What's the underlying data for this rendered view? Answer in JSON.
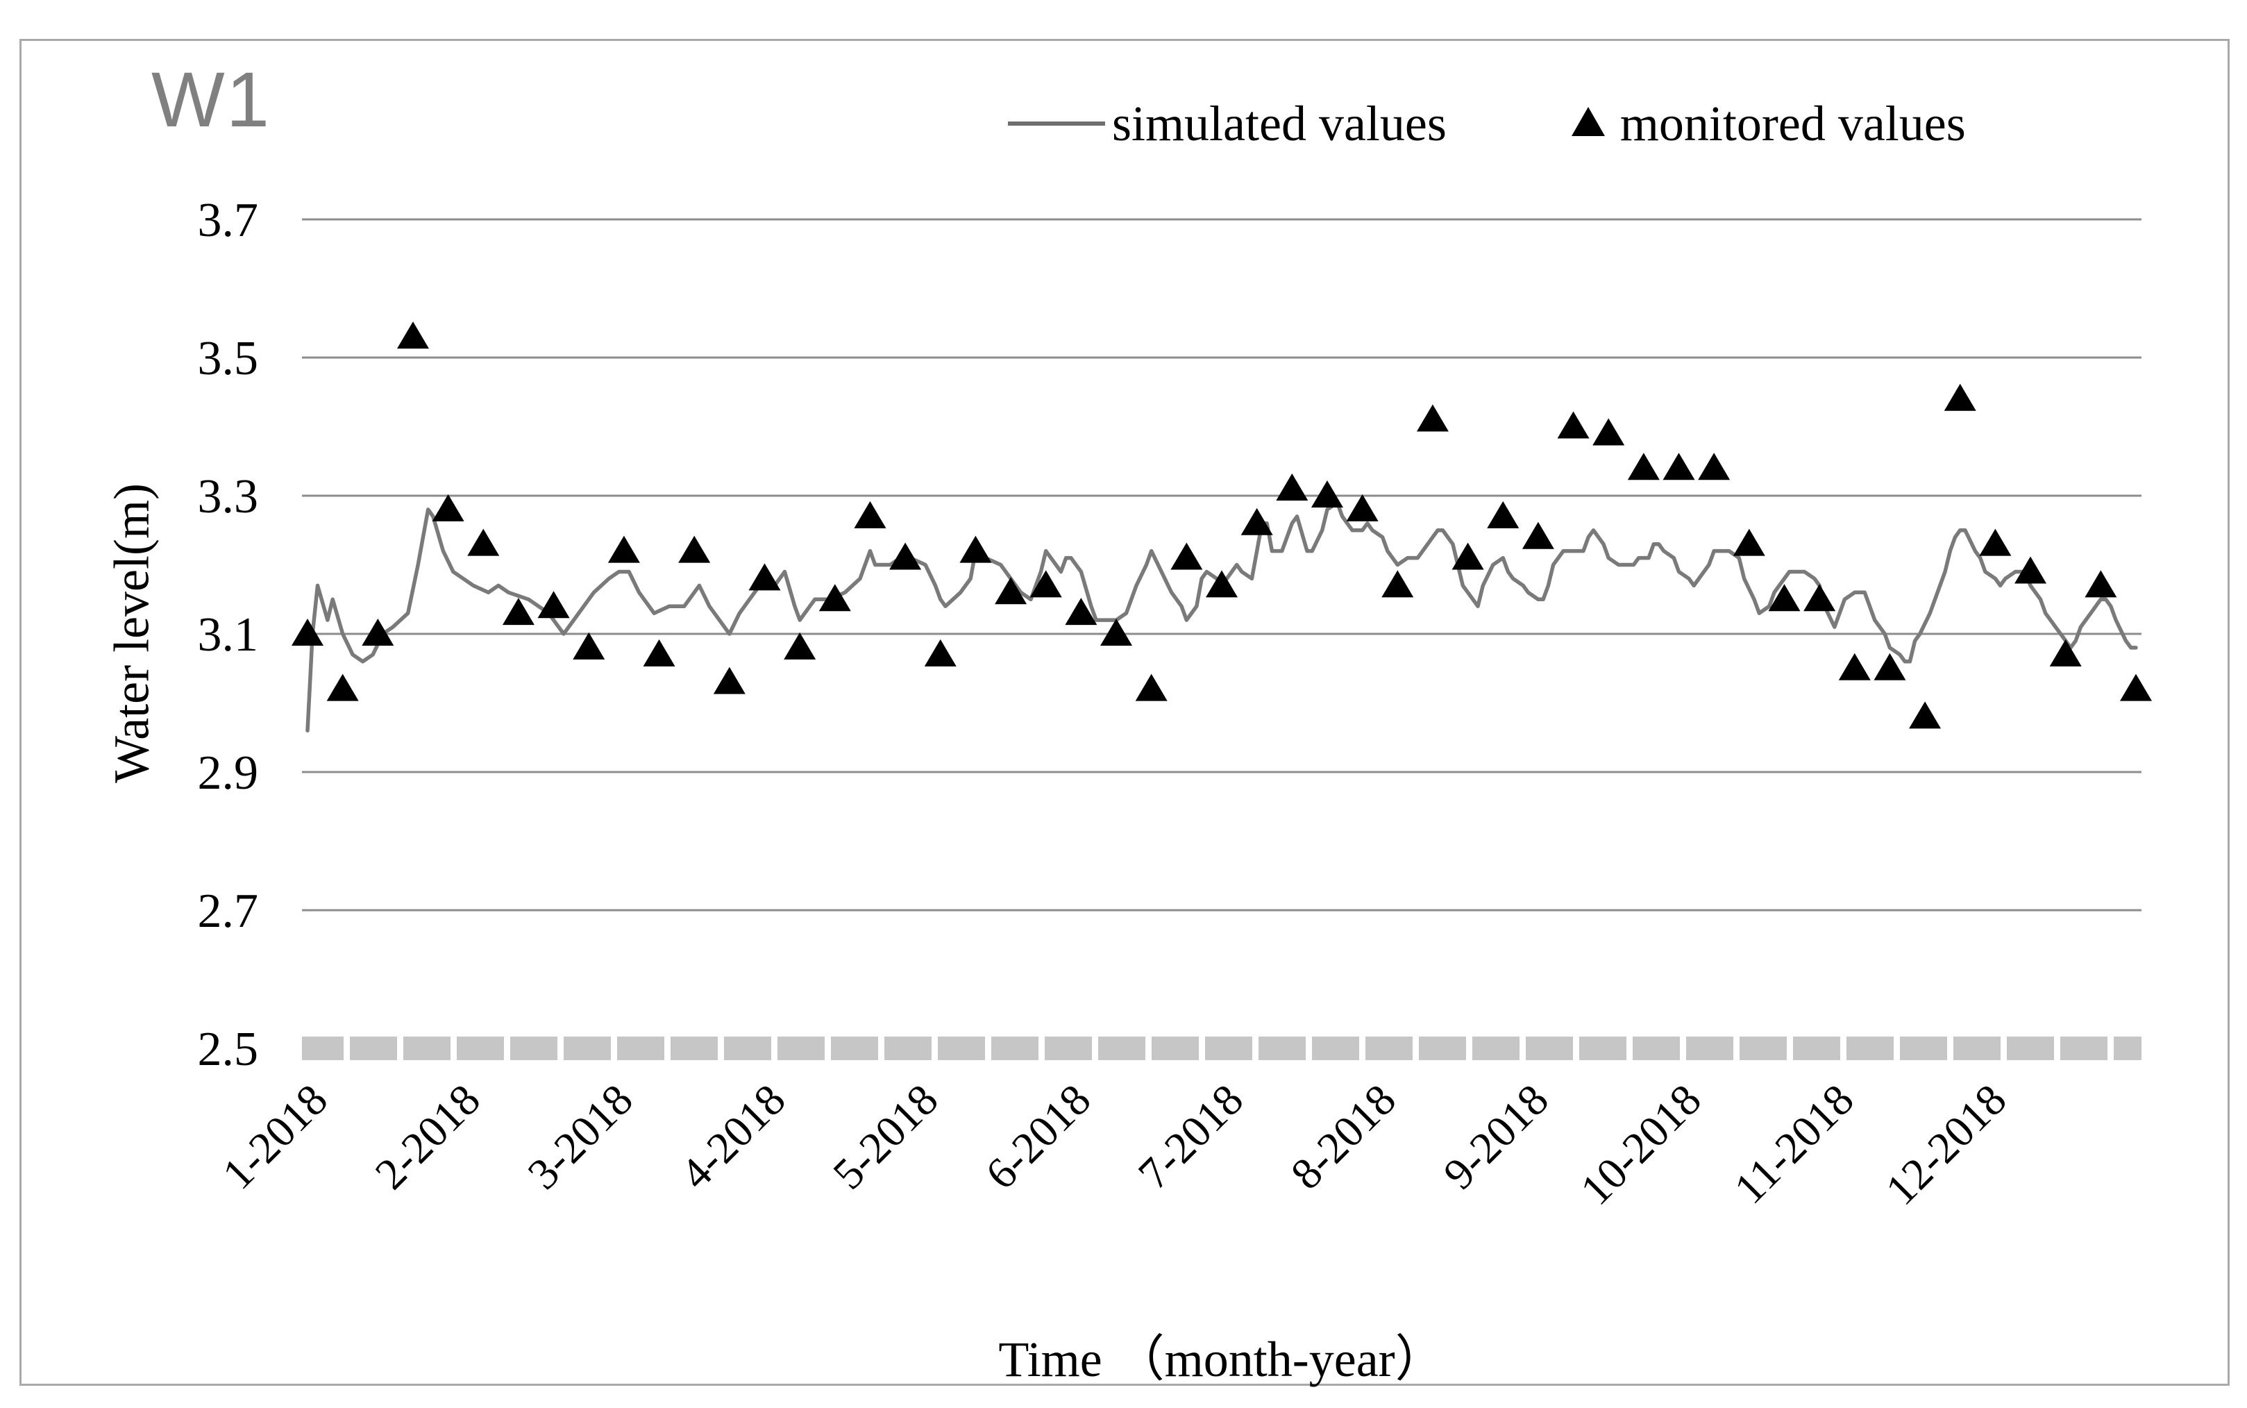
{
  "title": "W1",
  "legend": {
    "simulated_label": "simulated values",
    "monitored_label": "monitored values"
  },
  "axes": {
    "y": {
      "title": "Water level(m)",
      "tick_labels": [
        "3.7",
        "3.5",
        "3.3",
        "3.1",
        "2.9",
        "2.7",
        "2.5"
      ],
      "tick_values": [
        3.7,
        3.5,
        3.3,
        3.1,
        2.9,
        2.7,
        2.5
      ],
      "min": 2.5,
      "max": 3.7
    },
    "x": {
      "title": "Time （month-year）",
      "tick_labels": [
        "1-2018",
        "2-2018",
        "3-2018",
        "4-2018",
        "5-2018",
        "6-2018",
        "7-2018",
        "8-2018",
        "9-2018",
        "10-2018",
        "11-2018",
        "12-2018"
      ]
    }
  },
  "colors": {
    "gridline": "#8c8c8c",
    "axis_band": "#c6c6c6",
    "simulated_line": "#7a7a7a",
    "monitored_marker": "#000000",
    "title_gray": "#808080",
    "frame_border": "#a9a9a9"
  },
  "chart_data": {
    "type": "line",
    "title": "W1",
    "xlabel": "Time （month-year）",
    "ylabel": "Water level(m)",
    "ylim": [
      2.5,
      3.7
    ],
    "x_unit": "day of year 2018 (0-364), ticks at month starts",
    "grid": "horizontal",
    "legend_position": "top-right",
    "series": [
      {
        "name": "simulated values",
        "type": "line",
        "points": [
          [
            0,
            2.96
          ],
          [
            1,
            3.1
          ],
          [
            2,
            3.17
          ],
          [
            4,
            3.12
          ],
          [
            5,
            3.15
          ],
          [
            7,
            3.1
          ],
          [
            9,
            3.07
          ],
          [
            11,
            3.06
          ],
          [
            13,
            3.07
          ],
          [
            15,
            3.1
          ],
          [
            17,
            3.11
          ],
          [
            20,
            3.13
          ],
          [
            22,
            3.2
          ],
          [
            24,
            3.28
          ],
          [
            25,
            3.27
          ],
          [
            27,
            3.22
          ],
          [
            29,
            3.19
          ],
          [
            31,
            3.18
          ],
          [
            33,
            3.17
          ],
          [
            36,
            3.16
          ],
          [
            38,
            3.17
          ],
          [
            40,
            3.16
          ],
          [
            44,
            3.15
          ],
          [
            48,
            3.13
          ],
          [
            51,
            3.1
          ],
          [
            53,
            3.12
          ],
          [
            57,
            3.16
          ],
          [
            60,
            3.18
          ],
          [
            62,
            3.19
          ],
          [
            64,
            3.19
          ],
          [
            66,
            3.16
          ],
          [
            69,
            3.13
          ],
          [
            72,
            3.14
          ],
          [
            75,
            3.14
          ],
          [
            78,
            3.17
          ],
          [
            80,
            3.14
          ],
          [
            82,
            3.12
          ],
          [
            84,
            3.1
          ],
          [
            86,
            3.13
          ],
          [
            88,
            3.15
          ],
          [
            90,
            3.17
          ],
          [
            92,
            3.18
          ],
          [
            93,
            3.17
          ],
          [
            95,
            3.19
          ],
          [
            97,
            3.14
          ],
          [
            98,
            3.12
          ],
          [
            100,
            3.14
          ],
          [
            101,
            3.15
          ],
          [
            104,
            3.15
          ],
          [
            107,
            3.16
          ],
          [
            110,
            3.18
          ],
          [
            111,
            3.2
          ],
          [
            112,
            3.22
          ],
          [
            113,
            3.2
          ],
          [
            116,
            3.2
          ],
          [
            118,
            3.21
          ],
          [
            120,
            3.21
          ],
          [
            123,
            3.2
          ],
          [
            125,
            3.17
          ],
          [
            126,
            3.15
          ],
          [
            127,
            3.14
          ],
          [
            130,
            3.16
          ],
          [
            132,
            3.18
          ],
          [
            133,
            3.22
          ],
          [
            135,
            3.21
          ],
          [
            138,
            3.2
          ],
          [
            141,
            3.17
          ],
          [
            142,
            3.16
          ],
          [
            144,
            3.15
          ],
          [
            146,
            3.19
          ],
          [
            147,
            3.22
          ],
          [
            149,
            3.2
          ],
          [
            150,
            3.19
          ],
          [
            151,
            3.21
          ],
          [
            152,
            3.21
          ],
          [
            154,
            3.19
          ],
          [
            156,
            3.14
          ],
          [
            157,
            3.12
          ],
          [
            159,
            3.12
          ],
          [
            161,
            3.12
          ],
          [
            163,
            3.13
          ],
          [
            165,
            3.17
          ],
          [
            167,
            3.2
          ],
          [
            168,
            3.22
          ],
          [
            170,
            3.19
          ],
          [
            172,
            3.16
          ],
          [
            174,
            3.14
          ],
          [
            175,
            3.12
          ],
          [
            177,
            3.14
          ],
          [
            178,
            3.18
          ],
          [
            179,
            3.19
          ],
          [
            181,
            3.18
          ],
          [
            182,
            3.17
          ],
          [
            184,
            3.19
          ],
          [
            185,
            3.2
          ],
          [
            186,
            3.19
          ],
          [
            188,
            3.18
          ],
          [
            189,
            3.22
          ],
          [
            190,
            3.26
          ],
          [
            191,
            3.26
          ],
          [
            192,
            3.22
          ],
          [
            194,
            3.22
          ],
          [
            196,
            3.26
          ],
          [
            197,
            3.27
          ],
          [
            199,
            3.22
          ],
          [
            200,
            3.22
          ],
          [
            202,
            3.25
          ],
          [
            203,
            3.28
          ],
          [
            205,
            3.29
          ],
          [
            206,
            3.27
          ],
          [
            208,
            3.25
          ],
          [
            210,
            3.25
          ],
          [
            211,
            3.26
          ],
          [
            212,
            3.25
          ],
          [
            214,
            3.24
          ],
          [
            215,
            3.22
          ],
          [
            217,
            3.2
          ],
          [
            219,
            3.21
          ],
          [
            221,
            3.21
          ],
          [
            222,
            3.22
          ],
          [
            224,
            3.24
          ],
          [
            225,
            3.25
          ],
          [
            226,
            3.25
          ],
          [
            228,
            3.23
          ],
          [
            229,
            3.2
          ],
          [
            230,
            3.17
          ],
          [
            232,
            3.15
          ],
          [
            233,
            3.14
          ],
          [
            234,
            3.17
          ],
          [
            236,
            3.2
          ],
          [
            238,
            3.21
          ],
          [
            239,
            3.19
          ],
          [
            240,
            3.18
          ],
          [
            242,
            3.17
          ],
          [
            243,
            3.16
          ],
          [
            245,
            3.15
          ],
          [
            246,
            3.15
          ],
          [
            247,
            3.17
          ],
          [
            248,
            3.2
          ],
          [
            250,
            3.22
          ],
          [
            251,
            3.22
          ],
          [
            253,
            3.22
          ],
          [
            254,
            3.22
          ],
          [
            255,
            3.24
          ],
          [
            256,
            3.25
          ],
          [
            258,
            3.23
          ],
          [
            259,
            3.21
          ],
          [
            261,
            3.2
          ],
          [
            263,
            3.2
          ],
          [
            264,
            3.2
          ],
          [
            265,
            3.21
          ],
          [
            267,
            3.21
          ],
          [
            268,
            3.23
          ],
          [
            269,
            3.23
          ],
          [
            270,
            3.22
          ],
          [
            272,
            3.21
          ],
          [
            273,
            3.19
          ],
          [
            275,
            3.18
          ],
          [
            276,
            3.17
          ],
          [
            277,
            3.18
          ],
          [
            279,
            3.2
          ],
          [
            280,
            3.22
          ],
          [
            283,
            3.22
          ],
          [
            285,
            3.21
          ],
          [
            286,
            3.18
          ],
          [
            288,
            3.15
          ],
          [
            289,
            3.13
          ],
          [
            291,
            3.14
          ],
          [
            292,
            3.16
          ],
          [
            294,
            3.18
          ],
          [
            295,
            3.19
          ],
          [
            297,
            3.19
          ],
          [
            298,
            3.19
          ],
          [
            300,
            3.18
          ],
          [
            301,
            3.17
          ],
          [
            302,
            3.14
          ],
          [
            304,
            3.11
          ],
          [
            305,
            3.13
          ],
          [
            306,
            3.15
          ],
          [
            308,
            3.16
          ],
          [
            310,
            3.16
          ],
          [
            311,
            3.14
          ],
          [
            312,
            3.12
          ],
          [
            314,
            3.1
          ],
          [
            315,
            3.08
          ],
          [
            317,
            3.07
          ],
          [
            318,
            3.06
          ],
          [
            319,
            3.06
          ],
          [
            320,
            3.09
          ],
          [
            321,
            3.1
          ],
          [
            323,
            3.13
          ],
          [
            324,
            3.15
          ],
          [
            326,
            3.19
          ],
          [
            327,
            3.22
          ],
          [
            328,
            3.24
          ],
          [
            329,
            3.25
          ],
          [
            330,
            3.25
          ],
          [
            332,
            3.22
          ],
          [
            333,
            3.21
          ],
          [
            334,
            3.19
          ],
          [
            336,
            3.18
          ],
          [
            337,
            3.17
          ],
          [
            338,
            3.18
          ],
          [
            340,
            3.19
          ],
          [
            341,
            3.19
          ],
          [
            342,
            3.19
          ],
          [
            343,
            3.17
          ],
          [
            345,
            3.15
          ],
          [
            346,
            3.13
          ],
          [
            348,
            3.11
          ],
          [
            349,
            3.1
          ],
          [
            351,
            3.08
          ],
          [
            352,
            3.09
          ],
          [
            353,
            3.11
          ],
          [
            355,
            3.13
          ],
          [
            356,
            3.14
          ],
          [
            357,
            3.15
          ],
          [
            358,
            3.15
          ],
          [
            359,
            3.14
          ],
          [
            360,
            3.12
          ],
          [
            362,
            3.09
          ],
          [
            363,
            3.08
          ],
          [
            364,
            3.08
          ]
        ]
      },
      {
        "name": "monitored values",
        "type": "scatter",
        "marker": "triangle",
        "points": [
          [
            0,
            3.1
          ],
          [
            7,
            3.02
          ],
          [
            14,
            3.1
          ],
          [
            21,
            3.53
          ],
          [
            28,
            3.28
          ],
          [
            35,
            3.23
          ],
          [
            42,
            3.13
          ],
          [
            49,
            3.14
          ],
          [
            56,
            3.08
          ],
          [
            63,
            3.22
          ],
          [
            70,
            3.07
          ],
          [
            77,
            3.22
          ],
          [
            84,
            3.03
          ],
          [
            91,
            3.18
          ],
          [
            98,
            3.08
          ],
          [
            105,
            3.15
          ],
          [
            112,
            3.27
          ],
          [
            119,
            3.21
          ],
          [
            126,
            3.07
          ],
          [
            133,
            3.22
          ],
          [
            140,
            3.16
          ],
          [
            147,
            3.17
          ],
          [
            154,
            3.13
          ],
          [
            161,
            3.1
          ],
          [
            168,
            3.02
          ],
          [
            175,
            3.21
          ],
          [
            182,
            3.17
          ],
          [
            189,
            3.26
          ],
          [
            196,
            3.31
          ],
          [
            203,
            3.3
          ],
          [
            210,
            3.28
          ],
          [
            217,
            3.17
          ],
          [
            224,
            3.41
          ],
          [
            231,
            3.21
          ],
          [
            238,
            3.27
          ],
          [
            245,
            3.24
          ],
          [
            252,
            3.4
          ],
          [
            259,
            3.39
          ],
          [
            266,
            3.34
          ],
          [
            273,
            3.34
          ],
          [
            280,
            3.34
          ],
          [
            287,
            3.23
          ],
          [
            294,
            3.15
          ],
          [
            301,
            3.15
          ],
          [
            308,
            3.05
          ],
          [
            315,
            3.05
          ],
          [
            322,
            2.98
          ],
          [
            329,
            3.44
          ],
          [
            336,
            3.23
          ],
          [
            343,
            3.19
          ],
          [
            350,
            3.07
          ],
          [
            357,
            3.17
          ],
          [
            364,
            3.02
          ]
        ]
      }
    ]
  }
}
